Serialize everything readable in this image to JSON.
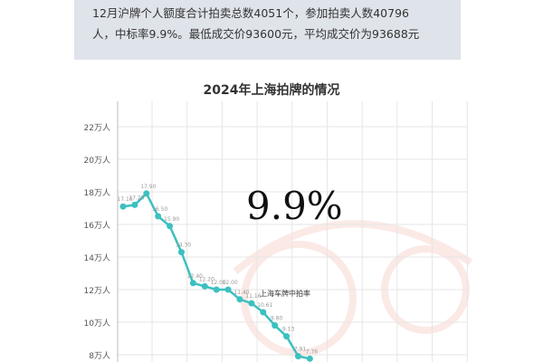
{
  "summary": {
    "line1": "12月沪牌个人额度合计拍卖总数4051个，参加拍卖人数40796",
    "line2": "人，中标率9.9%。最低成交价93600元，平均成交价为93688元"
  },
  "highlight": "9.9%",
  "chart_data": {
    "type": "line",
    "title": "2024年上海拍牌的情况",
    "series": [
      {
        "name": "上海车牌中拍率",
        "color": "#3cc0c0",
        "values": [
          17.1,
          17.2,
          17.9,
          16.5,
          15.9,
          14.3,
          12.4,
          12.2,
          12.0,
          12.0,
          11.4,
          11.16,
          10.61,
          9.8,
          9.13,
          7.91,
          7.76
        ]
      }
    ],
    "labels": [
      "17.10",
      "17.20",
      "17.90",
      "16.50",
      "15.90",
      "14.30",
      "12.40",
      "12.20",
      "12.00",
      "12.00",
      "11.40",
      "11.16",
      "10.61",
      "9.80",
      "9.13",
      "7.91",
      "7.76"
    ],
    "yticks": [
      "8万人",
      "10万人",
      "12万人",
      "14万人",
      "16万人",
      "18万人",
      "20万人",
      "22万人"
    ],
    "ytick_values": [
      8,
      10,
      12,
      14,
      16,
      18,
      20,
      22
    ],
    "grid": true
  }
}
